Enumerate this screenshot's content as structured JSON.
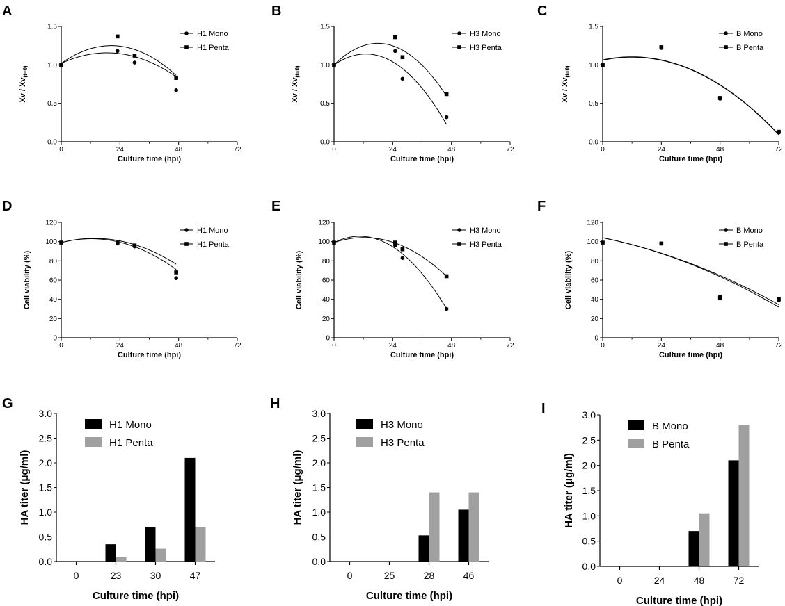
{
  "figure": {
    "background": "#ffffff",
    "mark_color": "#000000",
    "penta_bar_color": "#a0a0a0"
  },
  "chart_data": [
    {
      "panel_label": "A",
      "type": "scatter",
      "fit": "quadratic",
      "ylabel": "Xv / Xv",
      "ylabel_sub": "(t=0)",
      "xlabel": "Culture time (hpi)",
      "xlim": [
        0,
        72
      ],
      "ylim": [
        0,
        1.5
      ],
      "xticks": [
        "0",
        "24",
        "48",
        "72"
      ],
      "yticks": [
        "0.0",
        "0.5",
        "1.0",
        "1.5"
      ],
      "legend_position": "top-right",
      "series": [
        {
          "name": "H1 Mono",
          "marker": "circle",
          "x": [
            0,
            23,
            30,
            47
          ],
          "y": [
            1.0,
            1.18,
            1.03,
            0.67
          ],
          "fit_coeffs": [
            1.02,
            0.0146,
            -0.00039
          ]
        },
        {
          "name": "H1 Penta",
          "marker": "square",
          "x": [
            0,
            23,
            30,
            47
          ],
          "y": [
            1.0,
            1.37,
            1.12,
            0.83
          ],
          "fit_coeffs": [
            1.02,
            0.0225,
            -0.00055
          ]
        }
      ]
    },
    {
      "panel_label": "B",
      "type": "scatter",
      "fit": "quadratic",
      "ylabel": "Xv / Xv",
      "ylabel_sub": "(t=0)",
      "xlabel": "Culture time (hpi)",
      "xlim": [
        0,
        72
      ],
      "ylim": [
        0,
        1.5
      ],
      "xticks": [
        "0",
        "24",
        "48",
        "72"
      ],
      "yticks": [
        "0.0",
        "0.5",
        "1.0",
        "1.5"
      ],
      "legend_position": "top-right",
      "series": [
        {
          "name": "H3 Mono",
          "marker": "circle",
          "x": [
            0,
            25,
            28,
            46
          ],
          "y": [
            1.0,
            1.18,
            0.82,
            0.32
          ],
          "fit_coeffs": [
            1.0,
            0.0218,
            -0.00084
          ]
        },
        {
          "name": "H3 Penta",
          "marker": "square",
          "x": [
            0,
            25,
            28,
            46
          ],
          "y": [
            1.0,
            1.36,
            1.1,
            0.62
          ],
          "fit_coeffs": [
            1.0,
            0.0312,
            -0.00087
          ]
        }
      ]
    },
    {
      "panel_label": "C",
      "type": "scatter",
      "fit": "quadratic",
      "ylabel": "Xv / Xv",
      "ylabel_sub": "(t=0)",
      "xlabel": "Culture time (hpi)",
      "xlim": [
        0,
        72
      ],
      "ylim": [
        0,
        1.5
      ],
      "xticks": [
        "0",
        "24",
        "48",
        "72"
      ],
      "yticks": [
        "0.0",
        "0.5",
        "1.0",
        "1.5"
      ],
      "legend_position": "top-right",
      "series": [
        {
          "name": "B Mono",
          "marker": "circle",
          "x": [
            0,
            24,
            48,
            72
          ],
          "y": [
            1.0,
            1.22,
            0.56,
            0.12
          ],
          "fit_coeffs": [
            1.06,
            0.0067,
            -0.00028
          ]
        },
        {
          "name": "B Penta",
          "marker": "square",
          "x": [
            0,
            24,
            48,
            72
          ],
          "y": [
            1.0,
            1.23,
            0.57,
            0.13
          ],
          "fit_coeffs": [
            1.065,
            0.0067,
            -0.00028
          ]
        }
      ]
    },
    {
      "panel_label": "D",
      "type": "scatter",
      "fit": "quadratic",
      "ylabel": "Cell viability (%)",
      "xlabel": "Culture time (hpi)",
      "xlim": [
        0,
        72
      ],
      "ylim": [
        0,
        120
      ],
      "xticks": [
        "0",
        "24",
        "48",
        "72"
      ],
      "yticks": [
        "0",
        "20",
        "40",
        "60",
        "80",
        "100",
        "120"
      ],
      "legend_position": "top-right",
      "series": [
        {
          "name": "H1 Mono",
          "marker": "circle",
          "x": [
            0,
            23,
            30,
            47
          ],
          "y": [
            99,
            98,
            95,
            62
          ],
          "fit_coeffs": [
            99,
            0.65,
            -0.0265
          ]
        },
        {
          "name": "H1 Penta",
          "marker": "square",
          "x": [
            0,
            23,
            30,
            47
          ],
          "y": [
            99,
            99,
            96,
            68
          ],
          "fit_coeffs": [
            99,
            0.65,
            -0.024
          ]
        }
      ]
    },
    {
      "panel_label": "E",
      "type": "scatter",
      "fit": "quadratic",
      "ylabel": "Cell viability (%)",
      "xlabel": "Culture time (hpi)",
      "xlim": [
        0,
        72
      ],
      "ylim": [
        0,
        120
      ],
      "xticks": [
        "0",
        "24",
        "48",
        "72"
      ],
      "yticks": [
        "0",
        "20",
        "40",
        "60",
        "80",
        "100",
        "120"
      ],
      "legend_position": "top-right",
      "series": [
        {
          "name": "H3 Mono",
          "marker": "circle",
          "x": [
            0,
            25,
            28,
            46
          ],
          "y": [
            99,
            96,
            83,
            30
          ],
          "fit_coeffs": [
            99,
            1.25,
            -0.0597
          ]
        },
        {
          "name": "H3 Penta",
          "marker": "square",
          "x": [
            0,
            25,
            28,
            46
          ],
          "y": [
            99,
            99,
            92,
            64
          ],
          "fit_coeffs": [
            99,
            0.86,
            -0.0352
          ]
        }
      ]
    },
    {
      "panel_label": "F",
      "type": "scatter",
      "fit": "quadratic",
      "ylabel": "Cell viability (%)",
      "xlabel": "Culture time (hpi)",
      "xlim": [
        0,
        72
      ],
      "ylim": [
        0,
        120
      ],
      "xticks": [
        "0",
        "24",
        "48",
        "72"
      ],
      "yticks": [
        "0",
        "20",
        "40",
        "60",
        "80",
        "100",
        "120"
      ],
      "legend_position": "top-right",
      "series": [
        {
          "name": "B Mono",
          "marker": "circle",
          "x": [
            0,
            24,
            48,
            72
          ],
          "y": [
            99,
            98,
            43,
            39
          ],
          "fit_coeffs": [
            104,
            -0.52,
            -0.0067
          ]
        },
        {
          "name": "B Penta",
          "marker": "square",
          "x": [
            0,
            24,
            48,
            72
          ],
          "y": [
            99,
            98,
            41,
            40
          ],
          "fit_coeffs": [
            104,
            -0.52,
            -0.0062
          ]
        }
      ]
    },
    {
      "panel_label": "G",
      "type": "bar",
      "ylabel": "HA titer (μg/ml)",
      "xlabel": "Culture time (hpi)",
      "ylim": [
        0,
        3.0
      ],
      "yticks": [
        "0.0",
        "0.5",
        "1.0",
        "1.5",
        "2.0",
        "2.5",
        "3.0"
      ],
      "categories": [
        "0",
        "23",
        "30",
        "47"
      ],
      "legend_position": "top-left",
      "series": [
        {
          "name": "H1 Mono",
          "values": [
            0,
            0.35,
            0.7,
            2.1
          ]
        },
        {
          "name": "H1 Penta",
          "values": [
            0,
            0.09,
            0.26,
            0.7
          ]
        }
      ]
    },
    {
      "panel_label": "H",
      "type": "bar",
      "ylabel": "HA titer (μg/ml)",
      "xlabel": "Culture time (hpi)",
      "ylim": [
        0,
        3.0
      ],
      "yticks": [
        "0.0",
        "0.5",
        "1.0",
        "1.5",
        "2.0",
        "2.5",
        "3.0"
      ],
      "categories": [
        "0",
        "25",
        "28",
        "46"
      ],
      "legend_position": "top-left",
      "series": [
        {
          "name": "H3 Mono",
          "values": [
            0,
            0,
            0.53,
            1.05
          ]
        },
        {
          "name": "H3 Penta",
          "values": [
            0,
            0,
            1.4,
            1.4
          ]
        }
      ]
    },
    {
      "panel_label": "I",
      "type": "bar",
      "ylabel": "HA titer (μg/ml)",
      "xlabel": "Culture time (hpi)",
      "ylim": [
        0,
        3.0
      ],
      "yticks": [
        "0.0",
        "0.5",
        "1.0",
        "1.5",
        "2.0",
        "2.5",
        "3.0"
      ],
      "categories": [
        "0",
        "24",
        "48",
        "72"
      ],
      "legend_position": "top-left",
      "series": [
        {
          "name": "B Mono",
          "values": [
            0,
            0,
            0.7,
            2.1
          ]
        },
        {
          "name": "B Penta",
          "values": [
            0,
            0,
            1.05,
            2.8
          ]
        }
      ]
    }
  ]
}
